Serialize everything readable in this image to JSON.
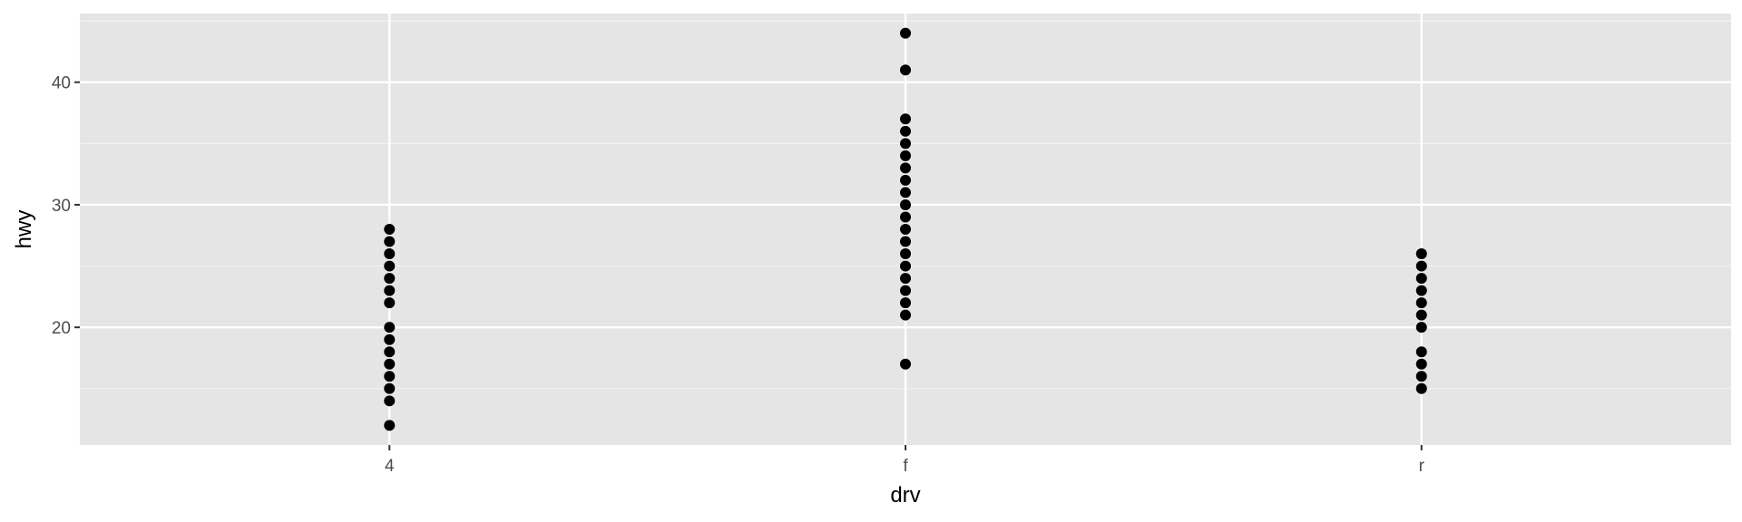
{
  "chart_data": {
    "type": "scatter",
    "xlabel": "drv",
    "ylabel": "hwy",
    "categories": [
      "4",
      "f",
      "r"
    ],
    "ylim": [
      10.4,
      45.6
    ],
    "y_ticks": [
      20,
      30,
      40
    ],
    "y_ticks_minor": [
      15,
      25,
      35,
      45
    ],
    "grid": true,
    "colors": {
      "panel_background": "#e5e5e5",
      "grid_major": "#ffffff",
      "grid_minor": "#f2f2f2",
      "point": "#000000",
      "tick_label": "#4d4d4d",
      "axis_title": "#000000"
    },
    "points": [
      {
        "x": "4",
        "y": 12
      },
      {
        "x": "4",
        "y": 14
      },
      {
        "x": "4",
        "y": 15
      },
      {
        "x": "4",
        "y": 16
      },
      {
        "x": "4",
        "y": 17
      },
      {
        "x": "4",
        "y": 18
      },
      {
        "x": "4",
        "y": 19
      },
      {
        "x": "4",
        "y": 20
      },
      {
        "x": "4",
        "y": 22
      },
      {
        "x": "4",
        "y": 23
      },
      {
        "x": "4",
        "y": 24
      },
      {
        "x": "4",
        "y": 25
      },
      {
        "x": "4",
        "y": 26
      },
      {
        "x": "4",
        "y": 27
      },
      {
        "x": "4",
        "y": 28
      },
      {
        "x": "f",
        "y": 17
      },
      {
        "x": "f",
        "y": 21
      },
      {
        "x": "f",
        "y": 22
      },
      {
        "x": "f",
        "y": 23
      },
      {
        "x": "f",
        "y": 24
      },
      {
        "x": "f",
        "y": 25
      },
      {
        "x": "f",
        "y": 26
      },
      {
        "x": "f",
        "y": 27
      },
      {
        "x": "f",
        "y": 28
      },
      {
        "x": "f",
        "y": 29
      },
      {
        "x": "f",
        "y": 30
      },
      {
        "x": "f",
        "y": 31
      },
      {
        "x": "f",
        "y": 32
      },
      {
        "x": "f",
        "y": 33
      },
      {
        "x": "f",
        "y": 34
      },
      {
        "x": "f",
        "y": 35
      },
      {
        "x": "f",
        "y": 36
      },
      {
        "x": "f",
        "y": 37
      },
      {
        "x": "f",
        "y": 41
      },
      {
        "x": "f",
        "y": 44
      },
      {
        "x": "r",
        "y": 15
      },
      {
        "x": "r",
        "y": 16
      },
      {
        "x": "r",
        "y": 17
      },
      {
        "x": "r",
        "y": 18
      },
      {
        "x": "r",
        "y": 20
      },
      {
        "x": "r",
        "y": 21
      },
      {
        "x": "r",
        "y": 22
      },
      {
        "x": "r",
        "y": 23
      },
      {
        "x": "r",
        "y": 24
      },
      {
        "x": "r",
        "y": 25
      },
      {
        "x": "r",
        "y": 26
      }
    ]
  }
}
